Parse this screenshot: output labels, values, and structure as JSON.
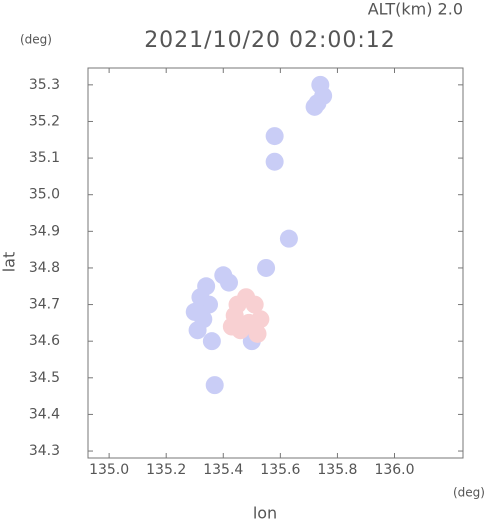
{
  "chart_data": {
    "type": "scatter",
    "title": "2021/10/20 02:00:12",
    "altitude_label": "ALT(km) 2.0",
    "y_unit": "(deg)",
    "x_unit": "(deg)",
    "xlabel": "lon",
    "ylabel": "lat",
    "xlim": [
      134.926,
      136.24
    ],
    "ylim": [
      34.281,
      35.346
    ],
    "xticks": [
      {
        "value": 135,
        "label": "135.0"
      },
      135.2,
      135.4,
      135.6,
      135.8,
      {
        "value": 136,
        "label": "136.0"
      }
    ],
    "yticks": [
      34.3,
      34.4,
      34.5,
      34.6,
      34.7,
      34.8,
      34.9,
      {
        "value": 35,
        "label": "35.0"
      },
      35.1,
      35.2,
      35.3
    ],
    "series": [
      {
        "color": "#c9cdf6",
        "x": [
          135.73,
          135.75,
          135.74,
          135.72,
          135.31,
          135.33,
          135.35,
          135.32,
          135.34,
          135.3,
          135.36,
          135.4,
          135.42,
          135.37,
          135.58,
          135.63,
          135.55,
          135.58,
          135.5
        ],
        "y": [
          35.25,
          35.27,
          35.3,
          35.24,
          34.63,
          34.66,
          34.7,
          34.72,
          34.75,
          34.68,
          34.6,
          34.78,
          34.76,
          34.48,
          35.09,
          34.88,
          34.8,
          35.16,
          34.6
        ]
      },
      {
        "color": "#f8d0d2",
        "x": [
          135.43,
          135.46,
          135.49,
          135.51,
          135.45,
          135.48,
          135.53,
          135.44,
          135.52
        ],
        "y": [
          34.64,
          34.63,
          34.65,
          34.7,
          34.7,
          34.72,
          34.66,
          34.67,
          34.62
        ]
      }
    ]
  }
}
